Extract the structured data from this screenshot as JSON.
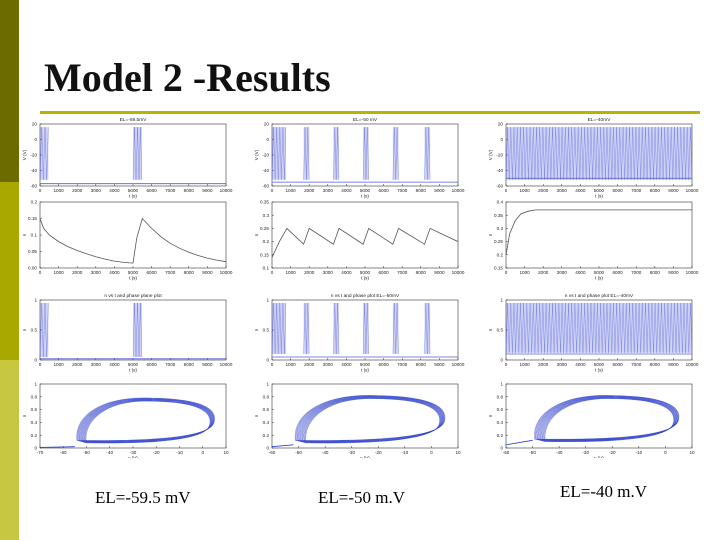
{
  "slide": {
    "title": "Model 2 -Results",
    "accent_colors": [
      "#6b6b00",
      "#a8a800",
      "#c8c840"
    ],
    "rule_color": "#b5b500"
  },
  "captions": [
    "EL=-59.5 mV",
    "EL=-50 m.V",
    "EL=-40 m.V"
  ],
  "chart_data": [
    {
      "type": "line",
      "column": 0,
      "row": 0,
      "kind": "spikes",
      "title": "EL=-59.5mV",
      "xlabel": "t (s)",
      "ylabel": "V (V)",
      "xlim": [
        0,
        10000
      ],
      "ylim": [
        -60,
        20
      ],
      "xticks": [
        0,
        1000,
        2000,
        3000,
        4000,
        5000,
        6000,
        7000,
        8000,
        9000,
        10000
      ],
      "yticks": [
        -60,
        -40,
        -20,
        0,
        20
      ],
      "bursts": [
        [
          0,
          450
        ],
        [
          5000,
          5480
        ]
      ],
      "spike_high": 16,
      "spike_low": -52,
      "rest": -57,
      "color": "#4f5bd8"
    },
    {
      "type": "line",
      "column": 1,
      "row": 0,
      "kind": "spikes",
      "title": "EL=-50 mV",
      "xlabel": "t (s)",
      "ylabel": "V (V)",
      "xlim": [
        0,
        10000
      ],
      "ylim": [
        -60,
        20
      ],
      "xticks": [
        0,
        1000,
        2000,
        3000,
        4000,
        5000,
        6000,
        7000,
        8000,
        9000,
        10000
      ],
      "yticks": [
        -60,
        -40,
        -20,
        0,
        20
      ],
      "bursts": [
        [
          0,
          750
        ],
        [
          1700,
          2000
        ],
        [
          3300,
          3600
        ],
        [
          4900,
          5200
        ],
        [
          6500,
          6800
        ],
        [
          8200,
          8500
        ]
      ],
      "spike_high": 16,
      "spike_low": -52,
      "rest": -55,
      "color": "#4f5bd8"
    },
    {
      "type": "line",
      "column": 2,
      "row": 0,
      "kind": "spikes",
      "title": "EL=-40mV",
      "xlabel": "t (s)",
      "ylabel": "V (V)",
      "xlim": [
        0,
        10000
      ],
      "ylim": [
        -60,
        20
      ],
      "xticks": [
        0,
        1000,
        2000,
        3000,
        4000,
        5000,
        6000,
        7000,
        8000,
        9000,
        10000
      ],
      "yticks": [
        -60,
        -40,
        -20,
        0,
        20
      ],
      "bursts": [
        [
          0,
          10000
        ]
      ],
      "spike_high": 16,
      "spike_low": -52,
      "rest": -50,
      "color": "#4f5bd8"
    },
    {
      "type": "line",
      "column": 0,
      "row": 1,
      "title": "",
      "xlabel": "t (s)",
      "ylabel": "n",
      "xlim": [
        0,
        10000
      ],
      "ylim": [
        0,
        0.2
      ],
      "xticks": [
        0,
        1000,
        2000,
        3000,
        4000,
        5000,
        6000,
        7000,
        8000,
        9000,
        10000
      ],
      "yticks": [
        0,
        0.05,
        0.1,
        0.15,
        0.2
      ],
      "yticklabels": [
        "0.00",
        "0.05",
        "0.1",
        "0.15",
        "0.2"
      ],
      "x": [
        0,
        200,
        500,
        1000,
        1500,
        2000,
        2500,
        3000,
        3500,
        4000,
        4500,
        5000,
        5200,
        5500,
        6000,
        6500,
        7000,
        7500,
        8000,
        8500,
        9000,
        9500,
        10000
      ],
      "y": [
        0.15,
        0.12,
        0.1,
        0.08,
        0.065,
        0.053,
        0.043,
        0.034,
        0.027,
        0.021,
        0.017,
        0.015,
        0.09,
        0.15,
        0.12,
        0.095,
        0.075,
        0.06,
        0.048,
        0.038,
        0.03,
        0.024,
        0.019
      ],
      "color": "#555555"
    },
    {
      "type": "line",
      "column": 1,
      "row": 1,
      "title": "",
      "xlabel": "t (s)",
      "ylabel": "n",
      "xlim": [
        0,
        10000
      ],
      "ylim": [
        0.1,
        0.35
      ],
      "xticks": [
        0,
        1000,
        2000,
        3000,
        4000,
        5000,
        6000,
        7000,
        8000,
        9000,
        10000
      ],
      "yticks": [
        0.1,
        0.15,
        0.2,
        0.25,
        0.3,
        0.35
      ],
      "yticklabels": [
        "0.1",
        "0.15",
        "0.2",
        "0.25",
        "0.3",
        "0.35"
      ],
      "x": [
        0,
        400,
        800,
        1700,
        2000,
        3300,
        3600,
        4900,
        5200,
        6500,
        6800,
        8200,
        8500,
        10000
      ],
      "y": [
        0.14,
        0.2,
        0.25,
        0.19,
        0.25,
        0.19,
        0.25,
        0.19,
        0.25,
        0.19,
        0.25,
        0.19,
        0.25,
        0.2
      ],
      "color": "#555555"
    },
    {
      "type": "line",
      "column": 2,
      "row": 1,
      "title": "",
      "xlabel": "t (s)",
      "ylabel": "n",
      "xlim": [
        0,
        10000
      ],
      "ylim": [
        0.15,
        0.4
      ],
      "xticks": [
        0,
        1000,
        2000,
        3000,
        4000,
        5000,
        6000,
        7000,
        8000,
        9000,
        10000
      ],
      "yticks": [
        0.15,
        0.2,
        0.25,
        0.3,
        0.35,
        0.4
      ],
      "yticklabels": [
        "0.15",
        "0.2",
        "0.25",
        "0.3",
        "0.35",
        "0.4"
      ],
      "x": [
        0,
        200,
        500,
        800,
        1200,
        1600,
        2000,
        10000
      ],
      "y": [
        0.2,
        0.28,
        0.33,
        0.355,
        0.365,
        0.37,
        0.37,
        0.37
      ],
      "color": "#555555"
    },
    {
      "type": "line",
      "column": 0,
      "row": 2,
      "kind": "gating",
      "title": "n vs t and phase plane plot",
      "xlabel": "t (s)",
      "ylabel": "n",
      "xlim": [
        0,
        10000
      ],
      "ylim": [
        0,
        1
      ],
      "xticks": [
        0,
        1000,
        2000,
        3000,
        4000,
        5000,
        6000,
        7000,
        8000,
        9000,
        10000
      ],
      "yticks": [
        0,
        0.5,
        1
      ],
      "bursts": [
        [
          0,
          450
        ],
        [
          5000,
          5480
        ]
      ],
      "spike_high": 0.95,
      "spike_low": 0.05,
      "rest": 0.02,
      "color": "#4f5bd8"
    },
    {
      "type": "line",
      "column": 1,
      "row": 2,
      "kind": "gating",
      "title": "n vs t and phase plot EL=-50mV",
      "xlabel": "t (s)",
      "ylabel": "n",
      "xlim": [
        0,
        10000
      ],
      "ylim": [
        0,
        1
      ],
      "xticks": [
        0,
        1000,
        2000,
        3000,
        4000,
        5000,
        6000,
        7000,
        8000,
        9000,
        10000
      ],
      "yticks": [
        0,
        0.5,
        1
      ],
      "bursts": [
        [
          0,
          750
        ],
        [
          1700,
          2000
        ],
        [
          3300,
          3600
        ],
        [
          4900,
          5200
        ],
        [
          6500,
          6800
        ],
        [
          8200,
          8500
        ]
      ],
      "spike_high": 0.95,
      "spike_low": 0.1,
      "rest": 0.05,
      "color": "#4f5bd8"
    },
    {
      "type": "line",
      "column": 2,
      "row": 2,
      "kind": "gating",
      "title": "n vs t and phase plot EL=-40mV",
      "xlabel": "t (s)",
      "ylabel": "n",
      "xlim": [
        0,
        10000
      ],
      "ylim": [
        0,
        1
      ],
      "xticks": [
        0,
        1000,
        2000,
        3000,
        4000,
        5000,
        6000,
        7000,
        8000,
        9000,
        10000
      ],
      "yticks": [
        0,
        0.5,
        1
      ],
      "bursts": [
        [
          0,
          10000
        ]
      ],
      "spike_high": 0.95,
      "spike_low": 0.12,
      "rest": 0.1,
      "color": "#4f5bd8"
    },
    {
      "type": "line",
      "column": 0,
      "row": 3,
      "kind": "phase",
      "title": "",
      "xlabel": "v (V)",
      "ylabel": "n",
      "xlim": [
        -70,
        10
      ],
      "ylim": [
        0,
        1
      ],
      "xticks": [
        -70,
        -60,
        -50,
        -40,
        -30,
        -20,
        -10,
        0,
        10
      ],
      "yticks": [
        0,
        0.2,
        0.4,
        0.6,
        0.8,
        1
      ],
      "cycle": {
        "v_min": -55,
        "v_max": 5,
        "n_min": 0.08,
        "n_max": 0.78
      },
      "tail": [
        [
          -70,
          0.01
        ],
        [
          -55,
          0.02
        ]
      ],
      "color": "#3344cc"
    },
    {
      "type": "line",
      "column": 1,
      "row": 3,
      "kind": "phase",
      "title": "",
      "xlabel": "v (V)",
      "ylabel": "n",
      "xlim": [
        -60,
        10
      ],
      "ylim": [
        0,
        1
      ],
      "xticks": [
        -60,
        -50,
        -40,
        -30,
        -20,
        -10,
        0,
        10
      ],
      "yticks": [
        0,
        0.2,
        0.4,
        0.6,
        0.8,
        1
      ],
      "cycle": {
        "v_min": -52,
        "v_max": 5,
        "n_min": 0.08,
        "n_max": 0.82
      },
      "tail": [
        [
          -60,
          0.02
        ],
        [
          -52,
          0.05
        ]
      ],
      "color": "#3344cc"
    },
    {
      "type": "line",
      "column": 2,
      "row": 3,
      "kind": "phase",
      "title": "",
      "xlabel": "v (V)",
      "ylabel": "n",
      "xlim": [
        -60,
        10
      ],
      "ylim": [
        0,
        1
      ],
      "xticks": [
        -60,
        -50,
        -40,
        -30,
        -20,
        -10,
        0,
        10
      ],
      "yticks": [
        0,
        0.2,
        0.4,
        0.6,
        0.8,
        1
      ],
      "cycle": {
        "v_min": -50,
        "v_max": 5,
        "n_min": 0.1,
        "n_max": 0.82
      },
      "tail": [
        [
          -60,
          0.05
        ],
        [
          -50,
          0.12
        ]
      ],
      "color": "#3344cc"
    }
  ]
}
